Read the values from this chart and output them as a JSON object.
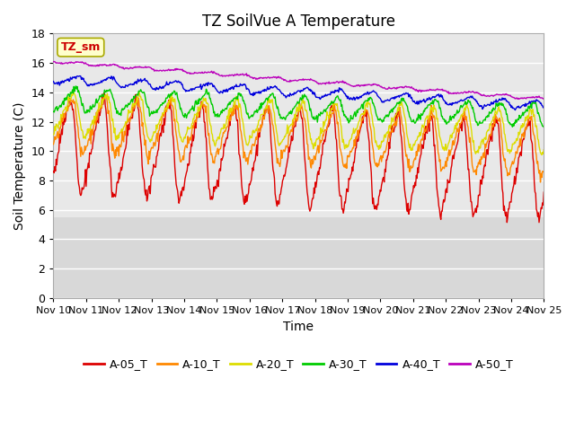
{
  "title": "TZ SoilVue A Temperature",
  "xlabel": "Time",
  "ylabel": "Soil Temperature (C)",
  "annotation": "TZ_sm",
  "annotation_color": "#cc0000",
  "annotation_bg": "#ffffcc",
  "annotation_border": "#aaaa00",
  "ylim": [
    0,
    18
  ],
  "yticks": [
    0,
    2,
    4,
    6,
    8,
    10,
    12,
    14,
    16,
    18
  ],
  "xtick_labels": [
    "Nov 10",
    "Nov 11",
    "Nov 12",
    "Nov 13",
    "Nov 14",
    "Nov 15",
    "Nov 16",
    "Nov 17",
    "Nov 18",
    "Nov 19",
    "Nov 20",
    "Nov 21",
    "Nov 22",
    "Nov 23",
    "Nov 24",
    "Nov 25"
  ],
  "series_colors": {
    "A-05_T": "#dd0000",
    "A-10_T": "#ff8800",
    "A-20_T": "#dddd00",
    "A-30_T": "#00cc00",
    "A-40_T": "#0000dd",
    "A-50_T": "#bb00bb"
  },
  "legend_labels": [
    "A-05_T",
    "A-10_T",
    "A-20_T",
    "A-30_T",
    "A-40_T",
    "A-50_T"
  ],
  "background_color": "#ffffff",
  "plot_bg_upper_color": "#e8e8e8",
  "plot_bg_lower_color": "#d8d8d8",
  "grid_color": "#ffffff",
  "num_points": 720,
  "days": 15,
  "series_params": {
    "A-05_T": {
      "base": 10.5,
      "trend": -0.12,
      "amp": 3.8,
      "phase": 1.2,
      "noise": 0.25,
      "asym": 0.7
    },
    "A-10_T": {
      "base": 11.8,
      "trend": -0.1,
      "amp": 2.2,
      "phase": 1.5,
      "noise": 0.2,
      "asym": 0.65
    },
    "A-20_T": {
      "base": 12.5,
      "trend": -0.08,
      "amp": 1.7,
      "phase": 1.8,
      "noise": 0.15,
      "asym": 0.6
    },
    "A-30_T": {
      "base": 13.5,
      "trend": -0.07,
      "amp": 0.9,
      "phase": 2.2,
      "noise": 0.1,
      "asym": 0.5
    },
    "A-40_T": {
      "base": 14.9,
      "trend": -0.12,
      "amp": 0.35,
      "phase": 2.8,
      "noise": 0.06,
      "asym": 0.5
    },
    "A-50_T": {
      "base": 16.1,
      "trend": -0.17,
      "amp": 0.12,
      "phase": 3.2,
      "noise": 0.03,
      "asym": 0.5
    }
  }
}
